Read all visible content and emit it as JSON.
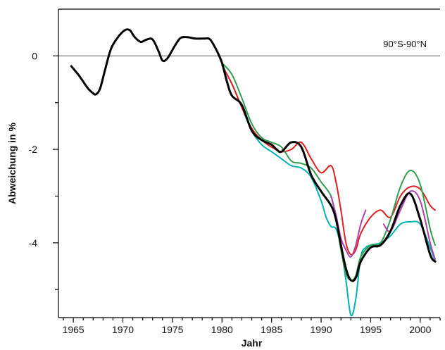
{
  "chart_data": {
    "type": "line",
    "title": "",
    "annotation": "90°S-90°N",
    "xlabel": "Jahr",
    "ylabel": "Abweichung in %",
    "xlim": [
      1963.5,
      2002
    ],
    "ylim": [
      -5.6,
      1
    ],
    "xticks": [
      1965,
      1970,
      1975,
      1980,
      1985,
      1990,
      1995,
      2000
    ],
    "yticks": [
      0,
      -2,
      -4
    ],
    "reference_line": 0,
    "grid": false,
    "legend": "none",
    "series": [
      {
        "color": "#00b4b4",
        "width": 2,
        "x": [
          1980,
          1981,
          1982,
          1983,
          1984,
          1985,
          1986,
          1987,
          1988,
          1989,
          1990,
          1990.5,
          1991,
          1991.5,
          1992,
          1992.5,
          1993,
          1993.5,
          1994,
          1994.5,
          1995,
          1996,
          1997,
          1998,
          1999,
          2000,
          2001,
          2001.5
        ],
        "y": [
          -0.2,
          -0.6,
          -1.1,
          -1.6,
          -1.9,
          -2.05,
          -2.2,
          -2.35,
          -2.4,
          -2.6,
          -3.1,
          -3.45,
          -3.65,
          -3.7,
          -4.1,
          -4.8,
          -5.55,
          -5.2,
          -4.3,
          -4.1,
          -4.05,
          -4.0,
          -3.85,
          -3.6,
          -3.55,
          -3.6,
          -4.1,
          -4.4
        ]
      },
      {
        "color": "#e02020",
        "width": 2,
        "x": [
          1980,
          1981,
          1982,
          1983,
          1984,
          1985,
          1986,
          1987,
          1988,
          1989,
          1990,
          1991,
          1991.5,
          1992,
          1992.5,
          1993,
          1993.5,
          1994,
          1995,
          1996,
          1997,
          1998,
          1999,
          2000,
          2001,
          2001.5
        ],
        "y": [
          -0.2,
          -0.6,
          -1.1,
          -1.55,
          -1.8,
          -1.95,
          -2.05,
          -2.0,
          -1.85,
          -2.2,
          -2.5,
          -2.35,
          -2.7,
          -3.3,
          -4.0,
          -4.25,
          -4.15,
          -3.8,
          -3.45,
          -3.3,
          -3.45,
          -3.0,
          -2.8,
          -2.85,
          -3.2,
          -3.3
        ]
      },
      {
        "color": "#30a050",
        "width": 2,
        "x": [
          1980,
          1981,
          1982,
          1983,
          1984,
          1985,
          1986,
          1987,
          1988,
          1989,
          1990,
          1991,
          1991.5,
          1992,
          1992.5,
          1993,
          1993.5,
          1994,
          1995,
          1996,
          1997,
          1998,
          1999,
          2000,
          2001,
          2001.5
        ],
        "y": [
          -0.15,
          -0.4,
          -0.9,
          -1.45,
          -1.75,
          -1.85,
          -1.95,
          -2.25,
          -2.3,
          -2.4,
          -2.7,
          -3.0,
          -3.5,
          -4.15,
          -4.65,
          -4.8,
          -4.7,
          -4.3,
          -4.05,
          -4.0,
          -3.5,
          -2.8,
          -2.45,
          -2.75,
          -3.7,
          -4.05
        ]
      },
      {
        "color": "#b040b0",
        "width": 2,
        "x": [
          1991,
          1991.5,
          1992,
          1992.5,
          1993,
          1993.5,
          1994,
          1994.5
        ],
        "y": [
          -3.0,
          -3.4,
          -3.9,
          -4.15,
          -4.3,
          -4.05,
          -3.6,
          -3.3
        ]
      },
      {
        "color": "#b040b0",
        "width": 2,
        "x": [
          1996.3,
          1997,
          1998,
          1999,
          2000,
          2001,
          2001.5
        ],
        "y": [
          -3.6,
          -3.75,
          -3.3,
          -2.9,
          -3.1,
          -4.0,
          -4.35
        ]
      },
      {
        "color": "#000000",
        "width": 3,
        "x": [
          1964.8,
          1965.5,
          1966,
          1966.5,
          1967,
          1967.3,
          1967.7,
          1968.2,
          1968.8,
          1969.5,
          1970.2,
          1970.7,
          1971.2,
          1971.8,
          1972.4,
          1973,
          1973.6,
          1974,
          1974.5,
          1975.2,
          1975.8,
          1976.5,
          1977.3,
          1978.2,
          1978.8,
          1979.5,
          1980,
          1980.5,
          1981,
          1982,
          1983,
          1984,
          1985,
          1985.5,
          1986,
          1987,
          1988,
          1989,
          1990,
          1991,
          1991.5,
          1992,
          1992.5,
          1993,
          1993.5,
          1994,
          1995,
          1996,
          1997,
          1998,
          1999,
          2000,
          2001,
          2001.5
        ],
        "y": [
          -0.22,
          -0.4,
          -0.55,
          -0.7,
          -0.8,
          -0.82,
          -0.7,
          -0.3,
          0.15,
          0.4,
          0.55,
          0.55,
          0.4,
          0.3,
          0.35,
          0.35,
          0.1,
          -0.1,
          -0.05,
          0.2,
          0.38,
          0.4,
          0.37,
          0.37,
          0.35,
          0.1,
          -0.15,
          -0.55,
          -0.85,
          -1.05,
          -1.6,
          -1.8,
          -1.9,
          -2.0,
          -2.05,
          -1.85,
          -1.95,
          -2.55,
          -2.9,
          -3.2,
          -3.5,
          -4.05,
          -4.55,
          -4.8,
          -4.75,
          -4.4,
          -4.1,
          -4.05,
          -3.75,
          -3.2,
          -2.95,
          -3.5,
          -4.25,
          -4.4
        ]
      }
    ]
  }
}
